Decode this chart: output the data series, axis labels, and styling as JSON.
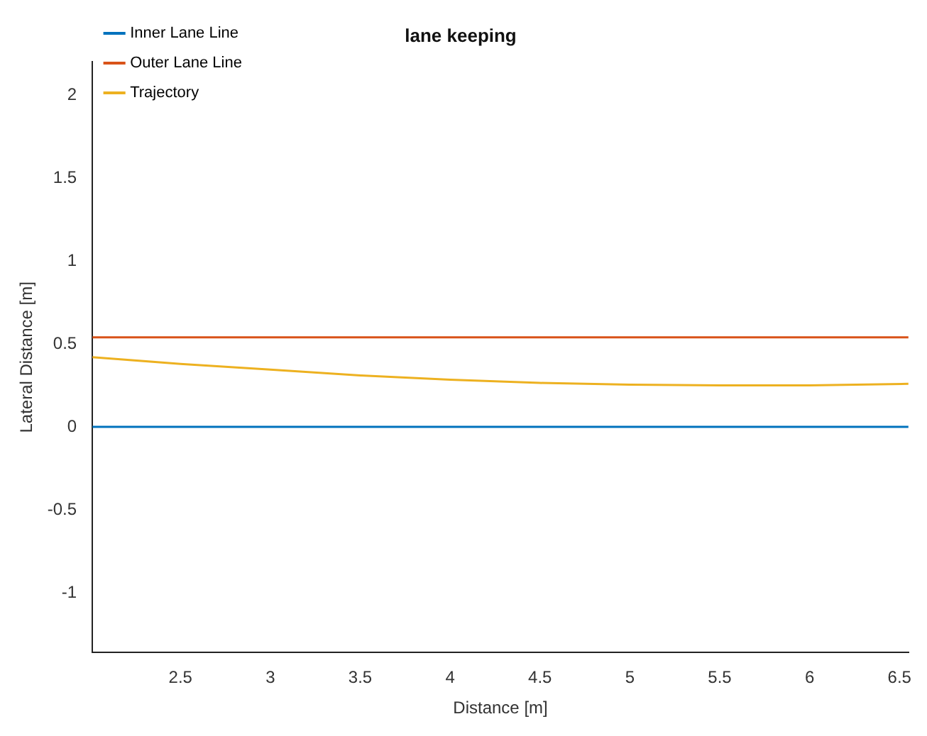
{
  "chart_data": {
    "type": "line",
    "title": "lane keeping",
    "xlabel": "Distance [m]",
    "ylabel": "Lateral Distance [m]",
    "x": [
      2.01,
      2.5,
      3,
      3.5,
      4,
      4.5,
      5,
      5.5,
      6,
      6.55
    ],
    "series": [
      {
        "name": "Inner Lane Line",
        "color": "#0072bd",
        "values": [
          0,
          0,
          0,
          0,
          0,
          0,
          0,
          0,
          0,
          0
        ]
      },
      {
        "name": "Outer Lane Line",
        "color": "#d95319",
        "values": [
          0.54,
          0.54,
          0.54,
          0.54,
          0.54,
          0.54,
          0.54,
          0.54,
          0.54,
          0.54
        ]
      },
      {
        "name": "Trajectory",
        "color": "#edb120",
        "values": [
          0.42,
          0.38,
          0.345,
          0.31,
          0.285,
          0.265,
          0.255,
          0.25,
          0.25,
          0.26
        ]
      }
    ],
    "xlim": [
      2.01,
      6.55
    ],
    "xticks": [
      2.5,
      3,
      3.5,
      4,
      4.5,
      5,
      5.5,
      6,
      6.5
    ],
    "ylim": [
      -1.36,
      2.2
    ],
    "yticks": [
      -1,
      -0.5,
      0,
      0.5,
      1,
      1.5,
      2
    ],
    "grid": false,
    "legend": "top left",
    "marker": "none",
    "line_style": "solid"
  }
}
